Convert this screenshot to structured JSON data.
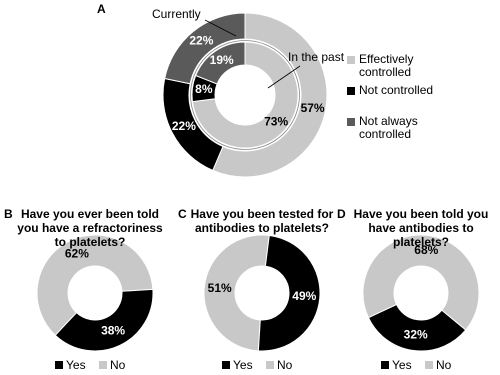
{
  "chart_data": [
    {
      "type": "donut",
      "label": "A",
      "categories": [
        "Effectively controlled",
        "Not controlled",
        "Not always controlled"
      ],
      "colors": [
        "#c8c8c8",
        "#000000",
        "#5a5a5a"
      ],
      "series": [
        {
          "name": "Currently",
          "values": [
            57,
            22,
            22
          ],
          "value_labels": [
            "57%",
            "22%",
            "22%"
          ]
        },
        {
          "name": "In the past",
          "values": [
            73,
            8,
            19
          ],
          "value_labels": [
            "73%",
            "8%",
            "19%"
          ]
        }
      ]
    },
    {
      "type": "donut",
      "label": "B",
      "title": "Have you ever been told you have a refractoriness to platelets?",
      "categories": [
        "Yes",
        "No"
      ],
      "colors": [
        "#000000",
        "#c8c8c8"
      ],
      "values": [
        38,
        62
      ],
      "value_labels": [
        "38%",
        "62%"
      ]
    },
    {
      "type": "donut",
      "label": "C",
      "title": "Have you been tested for antibodies to platelets?",
      "categories": [
        "Yes",
        "No"
      ],
      "colors": [
        "#000000",
        "#c8c8c8"
      ],
      "values": [
        49,
        51
      ],
      "value_labels": [
        "49%",
        "51%"
      ]
    },
    {
      "type": "donut",
      "label": "D",
      "title": "Have you been told you have antibodies to platelets?",
      "categories": [
        "Yes",
        "No"
      ],
      "colors": [
        "#000000",
        "#c8c8c8"
      ],
      "values": [
        32,
        68
      ],
      "value_labels": [
        "32%",
        "68%"
      ]
    }
  ]
}
